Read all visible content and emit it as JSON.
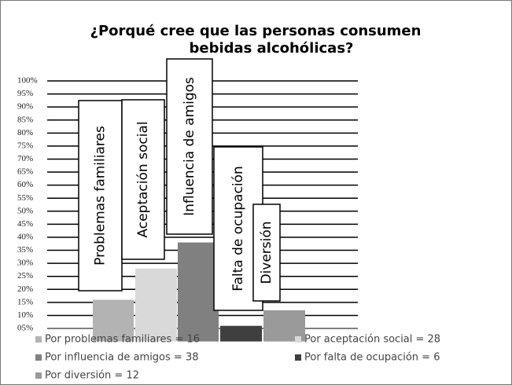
{
  "chart_data": {
    "type": "bar",
    "title": [
      "¿Porqué cree que las personas consumen",
      "bebidas alcohólicas?"
    ],
    "categories": [
      "Problemas  familiares",
      "Aceptación social",
      "Influencia de amigos",
      "Falta de ocupación",
      "Diversión"
    ],
    "values": [
      16,
      28,
      38,
      6,
      12
    ],
    "colors": [
      "#b3b3b3",
      "#d9d9d9",
      "#808080",
      "#3f3f3f",
      "#9a9a9a"
    ],
    "legend": [
      "Por problemas familiares = 16",
      "Por aceptación social = 28",
      "Por influencia de amigos = 38",
      "Por falta de ocupación = 6",
      "Por diversión = 12"
    ],
    "ylim": [
      0,
      100
    ],
    "yticks": [
      {
        "value": 5,
        "label": "05%"
      },
      {
        "value": 10,
        "label": "10%"
      },
      {
        "value": 15,
        "label": "15%"
      },
      {
        "value": 20,
        "label": "20%"
      },
      {
        "value": 25,
        "label": "25%"
      },
      {
        "value": 30,
        "label": "30%"
      },
      {
        "value": 35,
        "label": "35%"
      },
      {
        "value": 40,
        "label": "40%"
      },
      {
        "value": 45,
        "label": "45%"
      },
      {
        "value": 50,
        "label": "50%"
      },
      {
        "value": 55,
        "label": "55%"
      },
      {
        "value": 60,
        "label": "60%"
      },
      {
        "value": 65,
        "label": "65%"
      },
      {
        "value": 70,
        "label": "70%"
      },
      {
        "value": 75,
        "label": "75%"
      },
      {
        "value": 80,
        "label": "80%"
      },
      {
        "value": 85,
        "label": "85%"
      },
      {
        "value": 90,
        "label": "90%"
      },
      {
        "value": 95,
        "label": "95%"
      },
      {
        "value": 100,
        "label": "100%"
      }
    ],
    "grid": true
  }
}
